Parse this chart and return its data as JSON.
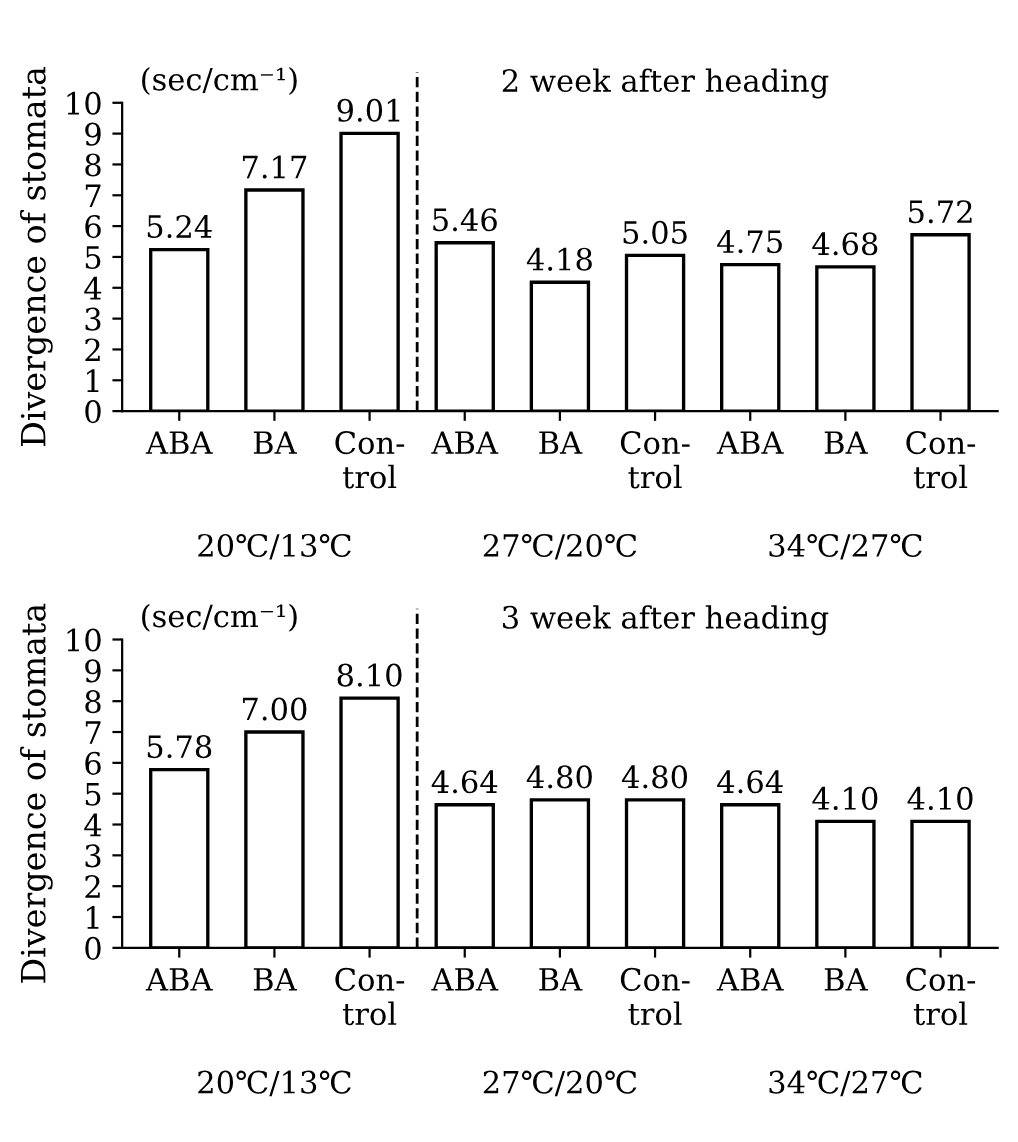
{
  "chart_data": [
    {
      "type": "bar",
      "title": "2 week after heading",
      "ylabel": "Divergence of stomata",
      "categories": [
        "ABA",
        "BA",
        "Con-\ntrol",
        "ABA",
        "BA",
        "Con-\ntrol",
        "ABA",
        "BA",
        "Con-\ntrol"
      ],
      "values": [
        5.24,
        7.17,
        9.01,
        5.46,
        4.18,
        5.05,
        4.75,
        4.68,
        5.72
      ],
      "color": "#ffffff",
      "data_labels": true,
      "value_labels": [
        "5.24",
        "7.17",
        "9.01",
        "5.46",
        "4.18",
        "5.05",
        "4.75",
        "4.68",
        "5.72"
      ],
      "ylim": [
        0,
        10
      ],
      "yticks": [
        0,
        1,
        2,
        3,
        4,
        5,
        6,
        7,
        8,
        9,
        10
      ],
      "grid": false,
      "legend": false,
      "annotations": [
        "(sec/cm⁻¹)",
        "20℃/13℃",
        "27℃/20℃",
        "34℃/27℃"
      ]
    },
    {
      "type": "bar",
      "title": "3 week after heading",
      "ylabel": "Divergence of stomata",
      "categories": [
        "ABA",
        "BA",
        "Con-\ntrol",
        "ABA",
        "BA",
        "Con-\ntrol",
        "ABA",
        "BA",
        "Con-\ntrol"
      ],
      "values": [
        5.78,
        7.0,
        8.1,
        4.64,
        4.8,
        4.8,
        4.64,
        4.1,
        4.1
      ],
      "color": "#ffffff",
      "data_labels": true,
      "value_labels": [
        "5.78",
        "7.00",
        "8.10",
        "4.64",
        "4.80",
        "4.80",
        "4.64",
        "4.10",
        "4.10"
      ],
      "ylim": [
        0,
        10
      ],
      "yticks": [
        0,
        1,
        2,
        3,
        4,
        5,
        6,
        7,
        8,
        9,
        10
      ],
      "grid": false,
      "legend": false,
      "annotations": [
        "(sec/cm⁻¹)",
        "20℃/13℃",
        "27℃/20℃",
        "34℃/27℃"
      ]
    }
  ]
}
